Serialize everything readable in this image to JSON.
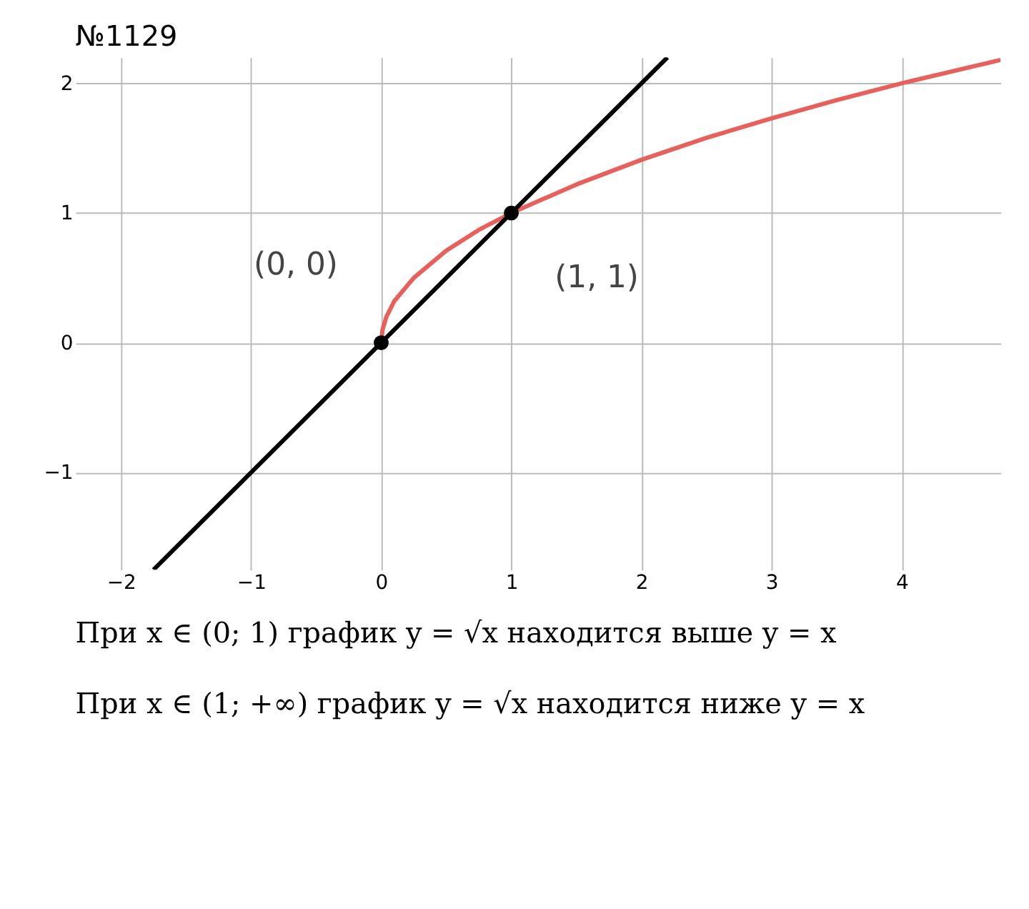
{
  "chart_data": {
    "type": "line",
    "title": "№1129",
    "xlim": [
      -2.35,
      4.76
    ],
    "ylim": [
      -1.75,
      2.2
    ],
    "xticks": [
      -2,
      -1,
      0,
      1,
      2,
      3,
      4
    ],
    "yticks": [
      -1,
      0,
      1,
      2
    ],
    "grid": true,
    "series": [
      {
        "line_style": "solid",
        "color": "#e8605c",
        "x": [
          0,
          0.01,
          0.04,
          0.1,
          0.25,
          0.5,
          0.75,
          1,
          1.5,
          2,
          2.5,
          3,
          3.5,
          4,
          4.76
        ],
        "values": [
          0,
          0.1,
          0.2,
          0.32,
          0.5,
          0.71,
          0.87,
          1,
          1.22,
          1.41,
          1.58,
          1.73,
          1.87,
          2,
          2.18
        ]
      },
      {
        "line_style": "solid",
        "color": "#000000",
        "x": [
          -1.75,
          2.2
        ],
        "values": [
          -1.75,
          2.2
        ]
      },
      {
        "type": "scatter",
        "color": "#000000",
        "marker": "circle",
        "x": [
          0,
          1
        ],
        "values": [
          0,
          1
        ]
      }
    ],
    "annotations": [
      {
        "text": "(0, 0)",
        "x": 0,
        "y": 0
      },
      {
        "text": "(1, 1)",
        "x": 1,
        "y": 1
      },
      "При x ∈ (0; 1) график y = √x находится выше y = x",
      "При x ∈ (1; +∞) график y = √x находится ниже y = x"
    ]
  }
}
